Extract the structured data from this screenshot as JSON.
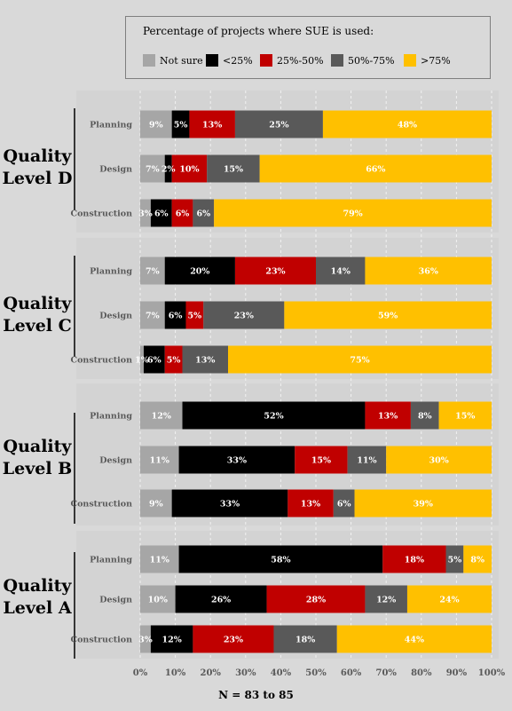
{
  "legend": {
    "title": "Percentage of projects where SUE is used:",
    "items": [
      {
        "label": "Not sure",
        "color": "#a6a6a6"
      },
      {
        "label": "<25%",
        "color": "#000000"
      },
      {
        "label": "25%-50%",
        "color": "#c00000"
      },
      {
        "label": "50%-75%",
        "color": "#595959"
      },
      {
        "label": ">75%",
        "color": "#ffc000"
      }
    ]
  },
  "groups": [
    {
      "line1": "Quality",
      "line2": "Level D"
    },
    {
      "line1": "Quality",
      "line2": "Level C"
    },
    {
      "line1": "Quality",
      "line2": "Level B"
    },
    {
      "line1": "Quality",
      "line2": "Level A"
    }
  ],
  "n_label": "N = 83 to 85",
  "chart_data": {
    "type": "bar",
    "orientation": "horizontal",
    "stacked": true,
    "normalized": true,
    "xlim": [
      0,
      100
    ],
    "x_ticks": [
      "0%",
      "10%",
      "20%",
      "30%",
      "40%",
      "50%",
      "60%",
      "70%",
      "80%",
      "90%",
      "100%"
    ],
    "grid": "vertical dashed",
    "legend_position": "top",
    "series_names": [
      "Not sure",
      "<25%",
      "25%-50%",
      "50%-75%",
      ">75%"
    ],
    "series_colors": [
      "#a6a6a6",
      "#000000",
      "#c00000",
      "#595959",
      "#ffc000"
    ],
    "label_colors": [
      "#ffffff",
      "#ffffff",
      "#ffffff",
      "#ffffff",
      "#ffffff"
    ],
    "rows": [
      {
        "group": "Quality Level D",
        "label": "Planning",
        "values": [
          9,
          5,
          13,
          25,
          48
        ],
        "labels": [
          "9%",
          "5%",
          "13%",
          "25%",
          "48%"
        ]
      },
      {
        "group": "Quality Level D",
        "label": "Design",
        "values": [
          7,
          2,
          10,
          15,
          66
        ],
        "labels": [
          "7%",
          "2%",
          "10%",
          "15%",
          "66%"
        ]
      },
      {
        "group": "Quality Level D",
        "label": "Construction",
        "values": [
          3,
          6,
          6,
          6,
          79
        ],
        "labels": [
          "3%",
          "6%",
          "6%",
          "6%",
          "79%"
        ]
      },
      {
        "group": "Quality Level C",
        "label": "Planning",
        "values": [
          7,
          20,
          23,
          14,
          36
        ],
        "labels": [
          "7%",
          "20%",
          "23%",
          "14%",
          "36%"
        ]
      },
      {
        "group": "Quality Level C",
        "label": "Design",
        "values": [
          7,
          6,
          5,
          23,
          59
        ],
        "labels": [
          "7%",
          "6%",
          "5%",
          "23%",
          "59%"
        ]
      },
      {
        "group": "Quality Level C",
        "label": "Construction",
        "values": [
          1,
          6,
          5,
          13,
          75
        ],
        "labels": [
          "1%",
          "6%",
          "5%",
          "13%",
          "75%"
        ]
      },
      {
        "group": "Quality Level B",
        "label": "Planning",
        "values": [
          12,
          52,
          13,
          8,
          15
        ],
        "labels": [
          "12%",
          "52%",
          "13%",
          "8%",
          "15%"
        ]
      },
      {
        "group": "Quality Level B",
        "label": "Design",
        "values": [
          11,
          33,
          15,
          11,
          30
        ],
        "labels": [
          "11%",
          "33%",
          "15%",
          "11%",
          "30%"
        ]
      },
      {
        "group": "Quality Level B",
        "label": "Construction",
        "values": [
          9,
          33,
          13,
          6,
          39
        ],
        "labels": [
          "9%",
          "33%",
          "13%",
          "6%",
          "39%"
        ]
      },
      {
        "group": "Quality Level A",
        "label": "Planning",
        "values": [
          11,
          58,
          18,
          5,
          8
        ],
        "labels": [
          "11%",
          "58%",
          "18%",
          "5%",
          "8%"
        ]
      },
      {
        "group": "Quality Level A",
        "label": "Design",
        "values": [
          10,
          26,
          28,
          12,
          24
        ],
        "labels": [
          "10%",
          "26%",
          "28%",
          "12%",
          "24%"
        ]
      },
      {
        "group": "Quality Level A",
        "label": "Construction",
        "values": [
          3,
          12,
          23,
          18,
          44
        ],
        "labels": [
          "3%",
          "12%",
          "23%",
          "18%",
          "44%"
        ]
      }
    ]
  }
}
